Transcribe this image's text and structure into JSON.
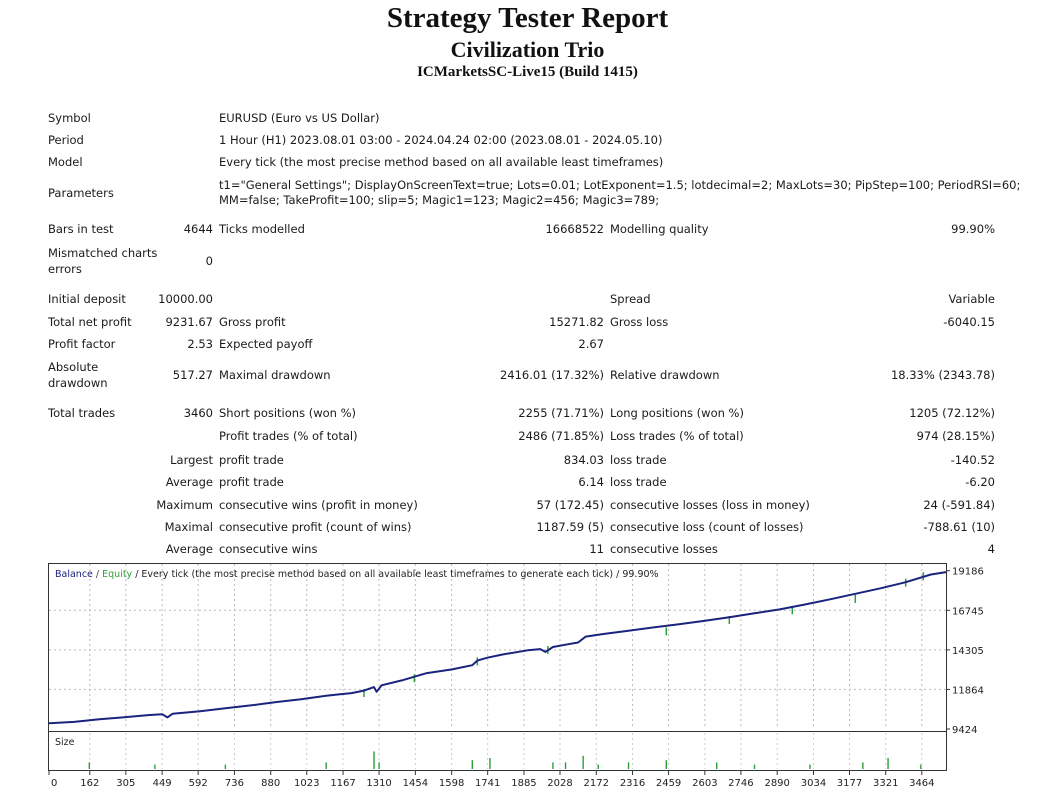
{
  "report": {
    "title": "Strategy Tester Report",
    "ea_name": "Civilization Trio",
    "server": "ICMarketsSC-Live15 (Build 1415)"
  },
  "settings": {
    "symbol_label": "Symbol",
    "symbol_value": "EURUSD (Euro vs US Dollar)",
    "period_label": "Period",
    "period_value": "1 Hour (H1) 2023.08.01 03:00 - 2024.04.24 02:00 (2023.08.01 - 2024.05.10)",
    "model_label": "Model",
    "model_value": "Every tick (the most precise method based on all available least timeframes)",
    "parameters_label": "Parameters",
    "parameters_line1": "t1=\"General Settings\"; DisplayOnScreenText=true; Lots=0.01; LotExponent=1.5; lotdecimal=2; MaxLots=30; PipStep=100; PeriodRSI=60;",
    "parameters_line2": "MM=false; TakeProfit=100; slip=5; Magic1=123; Magic2=456; Magic3=789;",
    "bars_label": "Bars in test",
    "bars_value": "4644",
    "ticks_label": "Ticks modelled",
    "ticks_value": "16668522",
    "quality_label": "Modelling quality",
    "quality_value": "99.90%",
    "mismatch_label_1": "Mismatched charts",
    "mismatch_label_2": "errors",
    "mismatch_value": "0"
  },
  "results": {
    "initial_deposit_label": "Initial deposit",
    "initial_deposit_value": "10000.00",
    "spread_label": "Spread",
    "spread_value": "Variable",
    "total_net_profit_label": "Total net profit",
    "total_net_profit_value": "9231.67",
    "gross_profit_label": "Gross profit",
    "gross_profit_value": "15271.82",
    "gross_loss_label": "Gross loss",
    "gross_loss_value": "-6040.15",
    "profit_factor_label": "Profit factor",
    "profit_factor_value": "2.53",
    "expected_payoff_label": "Expected payoff",
    "expected_payoff_value": "2.67",
    "abs_dd_label_1": "Absolute",
    "abs_dd_label_2": "drawdown",
    "abs_dd_value": "517.27",
    "max_dd_label": "Maximal drawdown",
    "max_dd_value": "2416.01 (17.32%)",
    "rel_dd_label": "Relative drawdown",
    "rel_dd_value": "18.33% (2343.78)",
    "total_trades_label": "Total trades",
    "total_trades_value": "3460",
    "short_label": "Short positions (won %)",
    "short_value": "2255 (71.71%)",
    "long_label": "Long positions (won %)",
    "long_value": "1205 (72.12%)",
    "profit_trades_label": "Profit trades (% of total)",
    "profit_trades_value": "2486 (71.85%)",
    "loss_trades_label": "Loss trades (% of total)",
    "loss_trades_value": "974 (28.15%)",
    "largest_label": "Largest",
    "largest_profit_label": "profit trade",
    "largest_profit_value": "834.03",
    "largest_loss_label": "loss trade",
    "largest_loss_value": "-140.52",
    "average_label": "Average",
    "average_profit_label": "profit trade",
    "average_profit_value": "6.14",
    "average_loss_label": "loss trade",
    "average_loss_value": "-6.20",
    "maximum_label": "Maximum",
    "max_cons_wins_label": "consecutive wins (profit in money)",
    "max_cons_wins_value": "57 (172.45)",
    "max_cons_losses_label": "consecutive losses (loss in money)",
    "max_cons_losses_value": "24 (-591.84)",
    "maximal_label": "Maximal",
    "maximal_cons_profit_label": "consecutive profit (count of wins)",
    "maximal_cons_profit_value": "1187.59 (5)",
    "maximal_cons_loss_label": "consecutive loss (count of losses)",
    "maximal_cons_loss_value": "-788.61 (10)",
    "avg2_label": "Average",
    "avg_cons_wins_label": "consecutive wins",
    "avg_cons_wins_value": "11",
    "avg_cons_losses_label": "consecutive losses",
    "avg_cons_losses_value": "4"
  },
  "chart_data": {
    "type": "line",
    "legend": {
      "balance": "Balance",
      "sep": " / ",
      "equity": "Equity",
      "rest": " / Every tick (the most precise method based on all available least timeframes to generate each tick) / 99.90%"
    },
    "ylim": [
      9424,
      19600
    ],
    "y_ticks": [
      "19186",
      "16745",
      "14305",
      "11864",
      "9424"
    ],
    "xlim": [
      0,
      3560
    ],
    "x_ticks": [
      "0",
      "162",
      "305",
      "449",
      "592",
      "736",
      "880",
      "1023",
      "1167",
      "1310",
      "1454",
      "1598",
      "1741",
      "1885",
      "2028",
      "2172",
      "2316",
      "2459",
      "2603",
      "2746",
      "2890",
      "3034",
      "3177",
      "3321",
      "3464"
    ],
    "size_label": "Size",
    "series": [
      {
        "name": "Balance",
        "color": "#1a237e",
        "points": [
          [
            0,
            9780
          ],
          [
            100,
            9860
          ],
          [
            200,
            10020
          ],
          [
            300,
            10150
          ],
          [
            400,
            10290
          ],
          [
            450,
            10330
          ],
          [
            470,
            10140
          ],
          [
            490,
            10360
          ],
          [
            600,
            10520
          ],
          [
            700,
            10700
          ],
          [
            800,
            10880
          ],
          [
            900,
            11080
          ],
          [
            1000,
            11260
          ],
          [
            1100,
            11480
          ],
          [
            1150,
            11560
          ],
          [
            1200,
            11640
          ],
          [
            1250,
            11790
          ],
          [
            1290,
            12010
          ],
          [
            1300,
            11720
          ],
          [
            1320,
            12120
          ],
          [
            1400,
            12420
          ],
          [
            1450,
            12650
          ],
          [
            1500,
            12870
          ],
          [
            1600,
            13100
          ],
          [
            1680,
            13360
          ],
          [
            1700,
            13640
          ],
          [
            1740,
            13820
          ],
          [
            1800,
            14020
          ],
          [
            1900,
            14280
          ],
          [
            1950,
            14350
          ],
          [
            1970,
            14180
          ],
          [
            2000,
            14480
          ],
          [
            2050,
            14620
          ],
          [
            2100,
            14760
          ],
          [
            2130,
            15120
          ],
          [
            2200,
            15280
          ],
          [
            2300,
            15480
          ],
          [
            2400,
            15690
          ],
          [
            2500,
            15880
          ],
          [
            2600,
            16090
          ],
          [
            2700,
            16320
          ],
          [
            2800,
            16560
          ],
          [
            2900,
            16800
          ],
          [
            3000,
            17100
          ],
          [
            3100,
            17420
          ],
          [
            3200,
            17760
          ],
          [
            3300,
            18100
          ],
          [
            3400,
            18480
          ],
          [
            3500,
            18950
          ],
          [
            3560,
            19100
          ]
        ]
      },
      {
        "name": "Equity",
        "color": "#2e9e3a",
        "points": [
          [
            1250,
            11400
          ],
          [
            1450,
            12300
          ],
          [
            1700,
            13350
          ],
          [
            1980,
            14050
          ],
          [
            2450,
            15200
          ],
          [
            2700,
            15900
          ],
          [
            2950,
            16500
          ],
          [
            3200,
            17200
          ],
          [
            3400,
            18200
          ],
          [
            3470,
            18600
          ]
        ]
      }
    ],
    "size_bars": [
      [
        160,
        3
      ],
      [
        420,
        2
      ],
      [
        700,
        2
      ],
      [
        1100,
        3
      ],
      [
        1290,
        8
      ],
      [
        1310,
        3
      ],
      [
        1680,
        4
      ],
      [
        1750,
        5
      ],
      [
        2000,
        3
      ],
      [
        2050,
        3
      ],
      [
        2120,
        6
      ],
      [
        2180,
        2
      ],
      [
        2300,
        3
      ],
      [
        2450,
        4
      ],
      [
        2650,
        3
      ],
      [
        2800,
        2
      ],
      [
        3020,
        2
      ],
      [
        3230,
        3
      ],
      [
        3330,
        5
      ],
      [
        3460,
        2
      ]
    ]
  }
}
